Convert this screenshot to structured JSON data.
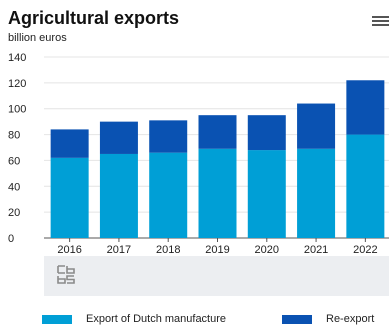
{
  "header": {
    "title": "Agricultural exports",
    "unit": "billion euros"
  },
  "chart_data": {
    "type": "bar",
    "stacked": true,
    "categories": [
      "2016",
      "2017",
      "2018",
      "2019",
      "2020",
      "2021",
      "2022"
    ],
    "series": [
      {
        "name": "Export of Dutch manufacture",
        "color": "#009fd6",
        "values": [
          62,
          65,
          66,
          69,
          68,
          69,
          80
        ]
      },
      {
        "name": "Re-export",
        "color": "#0a52b2",
        "values": [
          22,
          25,
          25,
          26,
          27,
          35,
          42
        ]
      }
    ],
    "ylim": [
      0,
      140
    ],
    "yticks": [
      "0",
      "20",
      "40",
      "60",
      "80",
      "100",
      "120",
      "140"
    ],
    "grid": true,
    "legend_position": "bottom"
  },
  "icons": {
    "menu": "hamburger-menu-icon",
    "logo": "cbs-logo"
  }
}
